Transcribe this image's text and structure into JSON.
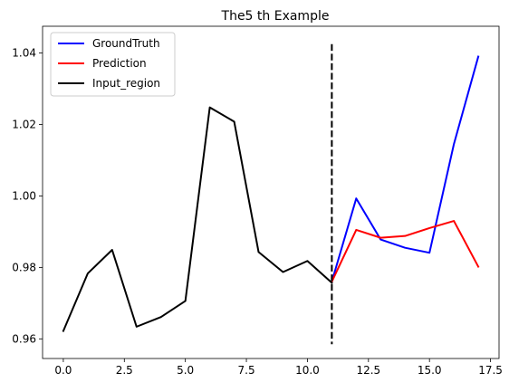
{
  "chart_data": {
    "type": "line",
    "title": "The5 th Example",
    "xlabel": "",
    "ylabel": "",
    "xlim": [
      -0.85,
      17.85
    ],
    "ylim": [
      0.9545,
      1.0475
    ],
    "xticks": [
      0.0,
      2.5,
      5.0,
      7.5,
      10.0,
      12.5,
      15.0,
      17.5
    ],
    "xtick_labels": [
      "0.0",
      "2.5",
      "5.0",
      "7.5",
      "10.0",
      "12.5",
      "15.0",
      "17.5"
    ],
    "yticks": [
      0.96,
      0.98,
      1.0,
      1.02,
      1.04
    ],
    "ytick_labels": [
      "0.96",
      "0.98",
      "1.00",
      "1.02",
      "1.04"
    ],
    "legend_position": "top-left",
    "series": [
      {
        "name": "GroundTruth",
        "color": "#0000ff",
        "x": [
          11,
          12,
          13,
          14,
          15,
          16,
          17
        ],
        "y": [
          0.976,
          0.9993,
          0.9878,
          0.9855,
          0.9841,
          1.0145,
          1.039
        ]
      },
      {
        "name": "Prediction",
        "color": "#ff0000",
        "x": [
          11,
          12,
          13,
          14,
          15,
          16,
          17
        ],
        "y": [
          0.976,
          0.9905,
          0.9883,
          0.9888,
          0.991,
          0.993,
          0.9802
        ]
      },
      {
        "name": "Input_region",
        "color": "#000000",
        "x": [
          0,
          1,
          2,
          3,
          4,
          5,
          6,
          7,
          8,
          9,
          10,
          11
        ],
        "y": [
          0.9622,
          0.9783,
          0.9849,
          0.9634,
          0.9661,
          0.9706,
          1.0248,
          1.0208,
          0.9843,
          0.9787,
          0.9818,
          0.9757
        ]
      }
    ],
    "vline": {
      "x": 11,
      "y0": 0.9585,
      "y1": 1.0425,
      "color": "#000000",
      "style": "dashed"
    }
  }
}
